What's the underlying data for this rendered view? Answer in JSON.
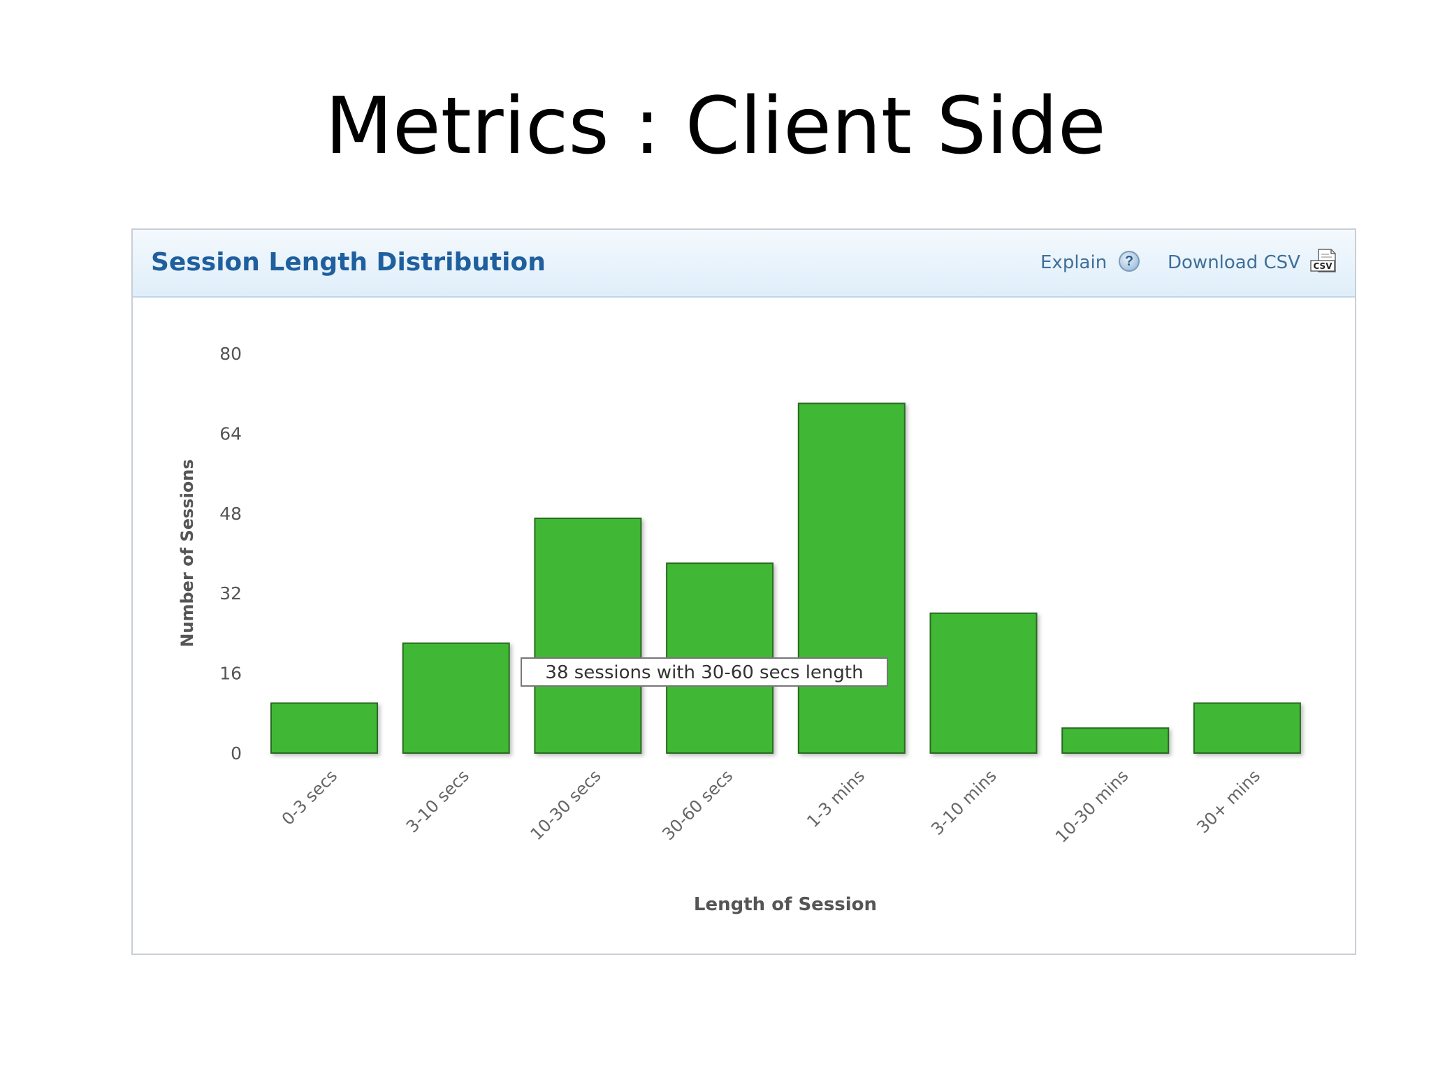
{
  "slide": {
    "title": "Metrics : Client Side"
  },
  "panel": {
    "title": "Session Length Distribution",
    "explain_label": "Explain",
    "help_icon": "help-icon",
    "download_label": "Download CSV",
    "csv_icon": "csv-icon",
    "csv_icon_text": "CSV"
  },
  "chart_data": {
    "type": "bar",
    "title": "Session Length Distribution",
    "xlabel": "Length of Session",
    "ylabel": "Number of Sessions",
    "ylim": [
      0,
      80
    ],
    "yticks": [
      0,
      16,
      32,
      48,
      64,
      80
    ],
    "grid": false,
    "bar_color": "#3fb834",
    "categories": [
      "0-3 secs",
      "3-10 secs",
      "10-30 secs",
      "30-60 secs",
      "1-3 mins",
      "3-10 mins",
      "10-30 mins",
      "30+ mins"
    ],
    "values": [
      10,
      22,
      47,
      38,
      70,
      28,
      5,
      10
    ],
    "tooltip": "38 sessions with 30-60 secs length"
  }
}
